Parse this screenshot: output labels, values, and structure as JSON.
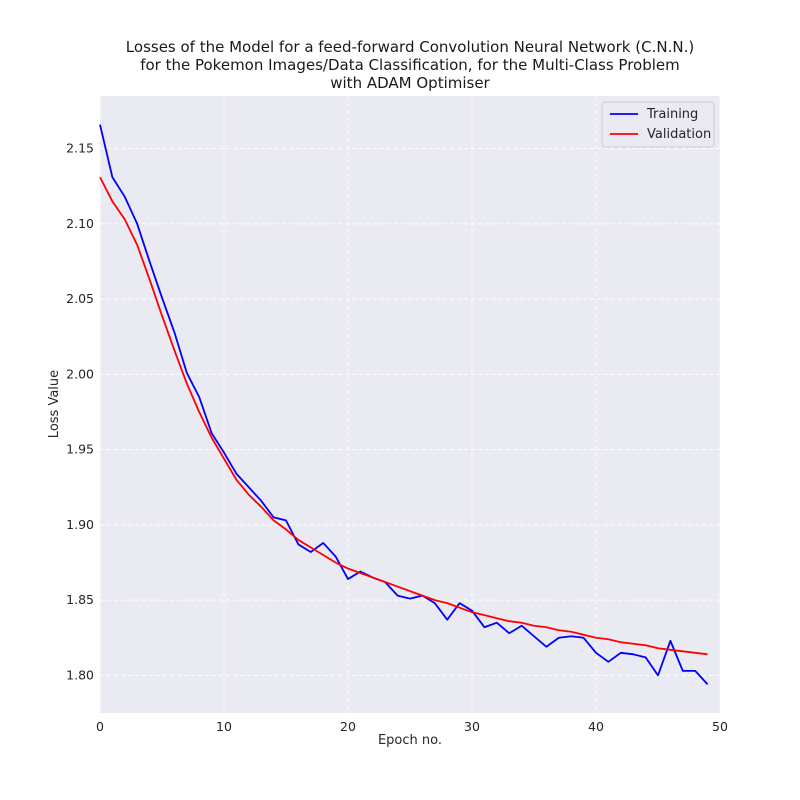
{
  "chart_data": {
    "type": "line",
    "title": [
      "Losses of the Model for a feed-forward Convolution Neural Network (C.N.N.)",
      "for the Pokemon Images/Data Classification, for the Multi-Class Problem",
      "with ADAM Optimiser"
    ],
    "xlabel": "Epoch no.",
    "ylabel": "Loss Value",
    "xlim": [
      0,
      50
    ],
    "ylim": [
      1.775,
      2.185
    ],
    "xticks": [
      0,
      10,
      20,
      30,
      40,
      50
    ],
    "yticks": [
      1.8,
      1.85,
      1.9,
      1.95,
      2.0,
      2.05,
      2.1,
      2.15
    ],
    "grid": true,
    "legend_position": "upper right",
    "series": [
      {
        "name": "Training",
        "color": "#0000ff",
        "x": [
          0,
          1,
          2,
          3,
          4,
          5,
          6,
          7,
          8,
          9,
          10,
          11,
          12,
          13,
          14,
          15,
          16,
          17,
          18,
          19,
          20,
          21,
          22,
          23,
          24,
          25,
          26,
          27,
          28,
          29,
          30,
          31,
          32,
          33,
          34,
          35,
          36,
          37,
          38,
          39,
          40,
          41,
          42,
          43,
          44,
          45,
          46,
          47,
          48,
          49
        ],
        "values": [
          2.166,
          2.131,
          2.118,
          2.1,
          2.075,
          2.051,
          2.028,
          2.001,
          1.985,
          1.961,
          1.948,
          1.934,
          1.925,
          1.916,
          1.905,
          1.903,
          1.887,
          1.882,
          1.888,
          1.879,
          1.864,
          1.869,
          1.865,
          1.862,
          1.853,
          1.851,
          1.853,
          1.848,
          1.837,
          1.848,
          1.843,
          1.832,
          1.835,
          1.828,
          1.833,
          1.826,
          1.819,
          1.825,
          1.826,
          1.825,
          1.815,
          1.809,
          1.815,
          1.814,
          1.812,
          1.8,
          1.823,
          1.803,
          1.803,
          1.794
        ]
      },
      {
        "name": "Validation",
        "color": "#ff0000",
        "x": [
          0,
          1,
          2,
          3,
          4,
          5,
          6,
          7,
          8,
          9,
          10,
          11,
          12,
          13,
          14,
          15,
          16,
          17,
          18,
          19,
          20,
          21,
          22,
          23,
          24,
          25,
          26,
          27,
          28,
          29,
          30,
          31,
          32,
          33,
          34,
          35,
          36,
          37,
          38,
          39,
          40,
          41,
          42,
          43,
          44,
          45,
          46,
          47,
          48,
          49
        ],
        "values": [
          2.131,
          2.115,
          2.103,
          2.086,
          2.063,
          2.039,
          2.016,
          1.994,
          1.975,
          1.958,
          1.944,
          1.93,
          1.92,
          1.912,
          1.903,
          1.897,
          1.89,
          1.885,
          1.88,
          1.875,
          1.871,
          1.868,
          1.865,
          1.862,
          1.859,
          1.856,
          1.853,
          1.85,
          1.848,
          1.845,
          1.842,
          1.84,
          1.838,
          1.836,
          1.835,
          1.833,
          1.832,
          1.83,
          1.829,
          1.827,
          1.825,
          1.824,
          1.822,
          1.821,
          1.82,
          1.818,
          1.817,
          1.816,
          1.815,
          1.814
        ]
      }
    ]
  }
}
